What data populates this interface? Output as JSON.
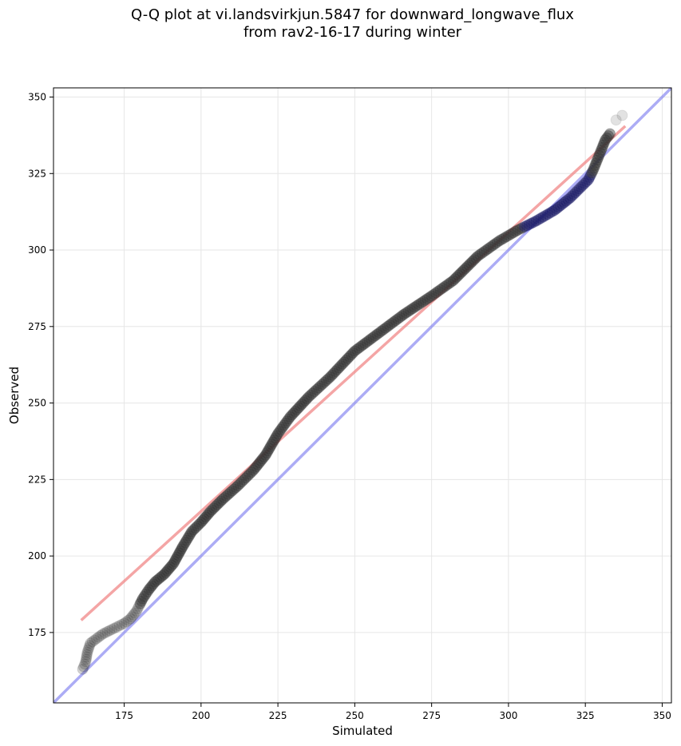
{
  "title": {
    "line1": "Q-Q plot at vi.landsvirkjun.5847 for downward_longwave_flux",
    "line2": "from rav2-16-17 during winter"
  },
  "colors": {
    "points": "#333333",
    "highlight_points": "#1a1a66",
    "fit_line": "#f07f7f",
    "identity_line": "#8080f0",
    "grid": "#e6e6e6"
  },
  "chart_data": {
    "type": "scatter",
    "xlabel": "Simulated",
    "ylabel": "Observed",
    "xlim": [
      152,
      353
    ],
    "ylim": [
      152,
      353
    ],
    "xticks": [
      175,
      200,
      225,
      250,
      275,
      300,
      325,
      350
    ],
    "yticks": [
      175,
      200,
      225,
      250,
      275,
      300,
      325,
      350
    ],
    "grid": true,
    "knots": [
      [
        161.5,
        163.0
      ],
      [
        162.5,
        165.5
      ],
      [
        163.0,
        168.5
      ],
      [
        164.0,
        171.5
      ],
      [
        166.0,
        173.0
      ],
      [
        168.0,
        174.5
      ],
      [
        171.0,
        176.0
      ],
      [
        175.0,
        178.0
      ],
      [
        177.0,
        179.5
      ],
      [
        179.0,
        182.0
      ],
      [
        181.0,
        186.0
      ],
      [
        183.0,
        189.0
      ],
      [
        185.0,
        191.5
      ],
      [
        188.0,
        194.0
      ],
      [
        191.0,
        197.5
      ],
      [
        194.0,
        203.0
      ],
      [
        197.0,
        208.0
      ],
      [
        200.0,
        211.0
      ],
      [
        203.0,
        214.5
      ],
      [
        207.0,
        218.5
      ],
      [
        212.0,
        223.0
      ],
      [
        217.0,
        228.0
      ],
      [
        221.0,
        233.0
      ],
      [
        225.0,
        240.0
      ],
      [
        229.0,
        245.5
      ],
      [
        235.0,
        252.0
      ],
      [
        242.0,
        258.5
      ],
      [
        250.0,
        267.0
      ],
      [
        258.0,
        273.0
      ],
      [
        266.0,
        279.0
      ],
      [
        275.0,
        285.0
      ],
      [
        282.0,
        290.0
      ],
      [
        290.0,
        298.0
      ],
      [
        297.0,
        303.0
      ],
      [
        303.0,
        306.5
      ],
      [
        309.0,
        309.5
      ],
      [
        315.0,
        313.0
      ],
      [
        320.0,
        317.0
      ],
      [
        323.0,
        320.0
      ],
      [
        326.0,
        323.0
      ],
      [
        327.5,
        326.0
      ],
      [
        328.5,
        328.5
      ],
      [
        329.5,
        331.0
      ],
      [
        330.5,
        333.5
      ],
      [
        331.5,
        336.0
      ],
      [
        333.0,
        338.0
      ]
    ],
    "outlier_points": [
      [
        335.0,
        342.5
      ],
      [
        337.0,
        344.0
      ]
    ],
    "fit_line": {
      "x": [
        161,
        338
      ],
      "y": [
        179,
        340.5
      ]
    },
    "identity_line": {
      "x": [
        152,
        353
      ],
      "y": [
        152,
        353
      ]
    }
  }
}
